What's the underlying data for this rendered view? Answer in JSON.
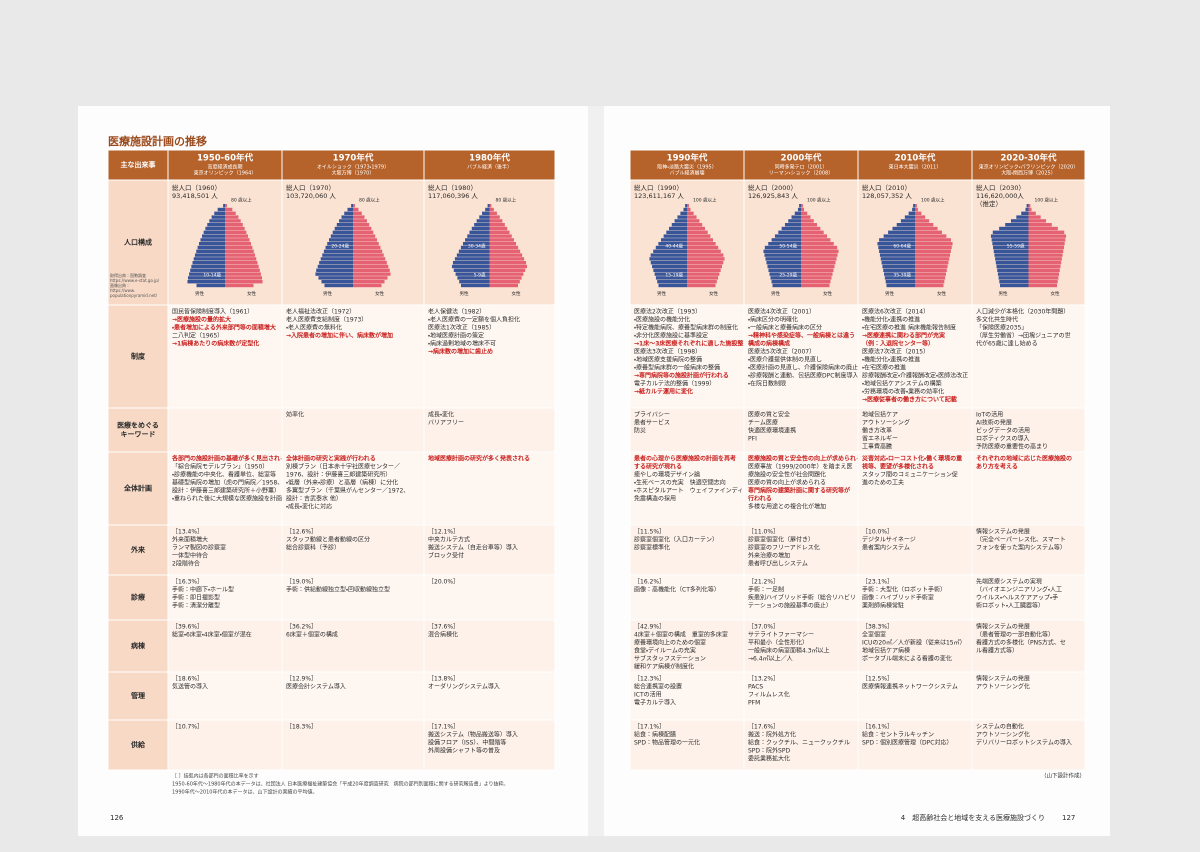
{
  "title": "医療施設計画の推移",
  "row_labels": [
    [
      "主な出来事"
    ],
    [
      "人口構成"
    ],
    [
      "制度"
    ],
    [
      "医療をめぐる",
      "キーワード"
    ],
    [
      "全体計画"
    ],
    [
      "外来"
    ],
    [
      "診療"
    ],
    [
      "病棟"
    ],
    [
      "管理"
    ],
    [
      "供給"
    ]
  ],
  "sources": [
    "取得出典：国勢調査",
    "https://www.e-stat.go.jp/",
    "画像出典：",
    "https://www.",
    "populationpyramid.net/"
  ],
  "male": "男性",
  "female": "女性",
  "eras": [
    {
      "name": "1950-60年代",
      "sub": [
        "高度経済成長期",
        "東京オリンピック（1964）"
      ],
      "pop": [
        "総人口（1960）",
        "93,418,501 人"
      ],
      "top": "80 歳以上",
      "ages": [
        "10-14歳"
      ],
      "cells": [
        [
          "国民皆保険制度導入（1961）",
          {
            "text": "→医療施設の量的拡大",
            "color": "#c8201e"
          },
          {
            "text": "・患者増加による外来部門等の面積増大",
            "color": "#c8201e"
          },
          "二八判定（1965）",
          {
            "text": "→1病棟あたりの病床数が定型化",
            "color": "#c8201e"
          }
        ],
        [],
        [
          {
            "text": "各部門の施設計画の基礎が多く見出される",
            "color": "#c8201e"
          },
          "「綜合病院モデルプラン」（1950）",
          "・診療機能の中央化、看護単位、総室等",
          "基礎型病院の増加（虎の門病院／1958、",
          "設計：伊藤喜三郎建築研究所＋小野薫）",
          "・重ねられた後に大規模な医療施設を計画"
        ],
        [
          "［13.4%］",
          "外来面積増大",
          "ランマ製図の診察室",
          "一体型中待合",
          "2段階待合"
        ],
        [
          "［16.3%］",
          "手術：中廊下・ホール型",
          "手術：即日撮影型",
          "手術：清潔分離型"
        ],
        [
          "［39.6%］",
          "総室・6床室・4床室・個室が混在"
        ],
        [
          "［18.6%］",
          "気送管の導入"
        ],
        [
          "［10.7%］"
        ]
      ]
    },
    {
      "name": "1970年代",
      "sub": [
        "オイルショック（1973・1979）",
        "大阪万博（1970）"
      ],
      "pop": [
        "総人口（1970）",
        "103,720,060 人"
      ],
      "top": "80 歳以上",
      "ages": [
        "20-24歳"
      ],
      "cells": [
        [
          "老人福祉法改正（1972）",
          "老人医療費支給制度（1973）",
          "・老人医療費の無料化",
          {
            "text": "→入院患者の増加に伴い、病床数が増加",
            "color": "#c8201e"
          }
        ],
        [
          "効率化"
        ],
        [
          {
            "text": "全体計画の研究と実践が行われる",
            "color": "#c8201e"
          },
          "別棟プラン（日本赤十字社医療センター／",
          "1976、設計：伊藤喜三郎建築研究所）",
          "・低層（外来・診療）と高層（病棟）に分化",
          "多翼型プラン（千葉県がんセンター／1972、",
          "設計：吉武泰水 他）",
          "・成長・変化に対応"
        ],
        [
          "［12.6%］",
          "スタッフ動線と患者動線の区分",
          "総合診察科（予診）"
        ],
        [
          "［19.0%］",
          "手術：供給動線独立型・回収動線独立型"
        ],
        [
          "［36.2%］",
          "6床室＋個室の構成"
        ],
        [
          "［12.9%］",
          "医療会計システム導入"
        ],
        [
          "［18.3%］"
        ]
      ]
    },
    {
      "name": "1980年代",
      "sub": [
        "バブル経済（後半）"
      ],
      "pop": [
        "総人口（1980）",
        "117,060,396 人"
      ],
      "top": "80 歳以上",
      "ages": [
        "30-34歳",
        "5-9歳"
      ],
      "cells": [
        [
          "老人保健法（1982）",
          "・老人医療費の一定額を個人負担化",
          "医療法1次改正（1985）",
          "・地域医療計画の策定",
          "・病床過剰地域の増床不可",
          {
            "text": "→病床数の増加に歯止め",
            "color": "#c8201e"
          }
        ],
        [
          "成長・変化",
          "バリアフリー"
        ],
        [
          {
            "text": "地域医療計画の研究が多く発表される",
            "color": "#c8201e"
          }
        ],
        [
          "［12.1%］",
          "中央カルテ方式",
          "搬送システム（自走台車等）導入",
          "ブロック受付"
        ],
        [
          "［20.0%］"
        ],
        [
          "［37.6%］",
          "混合病棟化"
        ],
        [
          "［13.8%］",
          "オーダリングシステム導入"
        ],
        [
          "［17.1%］",
          "搬送システム（物品搬送等）導入",
          "設備フロア（ISS）、中間階等",
          "外周設備シャフト等の普及"
        ]
      ]
    },
    {
      "name": "1990年代",
      "sub": [
        "阪神・淡路大震災（1995）",
        "バブル経済崩壊"
      ],
      "pop": [
        "総人口（1990）",
        "123,611,167 人"
      ],
      "top": "100 歳以上",
      "ages": [
        "40-44歳",
        "15-19歳"
      ],
      "cells": [
        [
          "医療法2次改正（1993）",
          "・医療施設の機能分化",
          "・特定機能病院、療養型病床群の制度化",
          "・非分化医療施設に基準設定",
          {
            "text": "→1床～3床医療それぞれに適した施設整備",
            "color": "#c8201e"
          },
          "医療法3次改正（1998）",
          "・地域医療支援病院の整備",
          "・療養型病床群の一般病床の整備",
          {
            "text": "→専門病院等の施設計画が行われる",
            "color": "#c8201e"
          },
          "電子カルテ法的整備（1999）",
          {
            "text": "→紙カルテ運用に変化",
            "color": "#c8201e"
          }
        ],
        [
          "プライバシー",
          "患者サービス",
          "防災"
        ],
        [
          {
            "text": "患者の心理から医療施設の計画を再考",
            "color": "#c8201e"
          },
          {
            "text": "する研究が現れる",
            "color": "#c8201e"
          },
          "癒やしの環境デザイン論",
          "・生死ベースの充実　快適空間志向",
          "・ホスピタルアート　ウェイファインディング",
          "免震構造の採用"
        ],
        [
          "［11.5%］",
          "診察室個室化（入口カーテン）",
          "診察室標準化"
        ],
        [
          "［16.2%］",
          "画像：高機能化（CT多列化等）"
        ],
        [
          "［42.9%］",
          "4床室＋個室の構成　重室的多床室",
          "療養環境向上のための個室",
          "食堂・デイルームの充実",
          "サブスタッフステーション",
          "緩和ケア病棟が制度化"
        ],
        [
          "［12.3%］",
          "総合連携室の設置",
          "ICTの活用",
          "電子カルテ導入"
        ],
        [
          "［17.1%］",
          "給食：病棟配膳",
          "SPD：物品管理の一元化"
        ]
      ]
    },
    {
      "name": "2000年代",
      "sub": [
        "同時多発テロ（2001）",
        "リーマン・ショック（2008）"
      ],
      "pop": [
        "総人口（2000）",
        "126,925,843 人"
      ],
      "top": "100 歳以上",
      "ages": [
        "50-54歳",
        "25-29歳"
      ],
      "cells": [
        [
          "医療法4次改正（2001）",
          "・病床区分の明確化",
          "・一般病床と療養病床の区分",
          {
            "text": "→精神科や感染症等、一般病棟とは違う",
            "color": "#c8201e"
          },
          {
            "text": "構成の病棟構成",
            "color": "#c8201e"
          },
          "医療法5次改正（2007）",
          "・医療介護提供体制の見直し",
          "・医療計画の見直し、介護保険病床の廃止",
          "・診療報酬と連動、包括医療DPC制度導入",
          "・在院日数制限"
        ],
        [
          "医療の質と安全",
          "チーム医療",
          "快適医療環境連携",
          "PFI"
        ],
        [
          {
            "text": "医療施設の質と安全性の向上が求められる",
            "color": "#c8201e"
          },
          "医療事故（1999/2000年）を踏まえ医",
          "療施設の安全性が社会問題化",
          "医療の質の向上が求められる",
          {
            "text": "専門病院の建築計画に関する研究等が",
            "color": "#c8201e"
          },
          {
            "text": "行われる",
            "color": "#c8201e"
          },
          "多様な用途との複合化が増加"
        ],
        [
          "［11.0%］",
          "診察室個室化（扉付き）",
          "診察室のフリーアドレス化",
          "外来治療の増加",
          "患者呼び出しシステム"
        ],
        [
          "［21.2%］",
          "手術：一足制",
          "疾患別ハイブリッド手術（総合リハビリ",
          "テーションの施設基準の廃止）"
        ],
        [
          "［37.0%］",
          "サテライトファーマシー",
          "平和最小（全性形化）",
          "一般病床の病室面積4.3㎡以上",
          "→6.4㎡以上／人"
        ],
        [
          "［13.2%］",
          "PACS",
          "フィルムレス化",
          "PFM"
        ],
        [
          "［17.6%］",
          "搬送：院外処方化",
          "給食：クックチル、ニュークックチル",
          "SPD：院外SPD",
          "委託業務拡大化"
        ]
      ]
    },
    {
      "name": "2010年代",
      "sub": [
        "東日本大震災（2011）"
      ],
      "pop": [
        "総人口（2010）",
        "128,057,352 人"
      ],
      "top": "100 歳以上",
      "ages": [
        "60-64歳",
        "35-39歳"
      ],
      "cells": [
        [
          "医療法6次改正（2014）",
          "・機能分化・連携の推進",
          "・在宅医療の推進 病床機能報告制度",
          {
            "text": "→医療連携に関わる部門が充実",
            "color": "#c8201e"
          },
          {
            "text": "（例：入退院センター等）",
            "color": "#c8201e"
          },
          "医療法7次改正（2015）",
          "・機能分化・連携の推進",
          "・在宅医療の推進",
          "診療報酬改定・介護報酬改定・医師法改正（2018）",
          "・地域包括ケアシステムの構築",
          "・労務環境の改善・業務の効率化",
          {
            "text": "→医療従事者の働き方について記載",
            "color": "#c8201e"
          }
        ],
        [
          "地域包括ケア",
          "アウトソーシング",
          "働き方改革",
          "省エネルギー",
          "工事費高騰"
        ],
        [
          {
            "text": "災害対応・ローコスト化・働く環境の重",
            "color": "#c8201e"
          },
          {
            "text": "視等、要望が多様化される",
            "color": "#c8201e"
          },
          "スタッフ間のコミュニケーション促",
          "進のための工夫"
        ],
        [
          "［10.0%］",
          "デジタルサイネージ",
          "患者案内システム"
        ],
        [
          "［23.1%］",
          "手術：大型化（ロボット手術）",
          "画像：ハイブリッド手術室",
          "薬剤師病棟常駐"
        ],
        [
          "［38.3%］",
          "全室個室",
          "ICUの20㎡／人が新設（従来は15㎡）",
          "地域包括ケア病棟",
          "ポータブル端末による看護の変化"
        ],
        [
          "［12.5%］",
          "医療情報連携ネットワークシステム"
        ],
        [
          "［16.1%］",
          "給食：セントラルキッチン",
          "SPD：個別医療管理（DPC対応）"
        ]
      ]
    },
    {
      "name": "2020-30年代",
      "sub": [
        "東京オリンピック・パラリンピック（2020）",
        "大阪・関西万博（2025）"
      ],
      "pop": [
        "総人口（2030）",
        "116,620,000人",
        "（推定）"
      ],
      "top": "100 歳以上",
      "ages": [
        "55-59歳"
      ],
      "cells": [
        [
          "人口減少が本格化（2030年問題）",
          "多文化共生時代",
          "「保険医療2035」",
          "（厚生労働省）→団塊ジュニアの世",
          "代が65歳に達し始める"
        ],
        [
          "IoTの活用",
          "AI技術の発展",
          "ビッグデータの活用",
          "ロボティクスの導入",
          "予防医療の重要性の高まり"
        ],
        [
          {
            "text": "それぞれの地域に応じた医療施設の",
            "color": "#c8201e"
          },
          {
            "text": "あり方を考える",
            "color": "#c8201e"
          }
        ],
        [
          "情報システムの発展",
          "（完全ペーパーレス化、スマート",
          "フォンを使った案内システム等）"
        ],
        [
          "先端医療システムの実現",
          "（バイオエンジニアリング・人工",
          "ウイルス・ヘルスケアアップ・手",
          "術ロボット・人工臓器等）"
        ],
        [
          "情報システムの発展",
          "（患者管理の一部自動化等）",
          "看護方式の多様化（PNS方式、セ",
          "ル看護方式等）"
        ],
        [
          "情報システムの発展",
          "アウトソーシング化"
        ],
        [
          "システムの自動化",
          "アウトソーシング化",
          "デリバリーロボットシステムの導入"
        ]
      ]
    }
  ],
  "footnote": [
    "［ ］括弧内は各部門の面積比率を示す",
    "1950-60年代～1980年代の本データは、社団法人 日本医療福祉建築協会「平成20年度調査研究　病院の部門別面積に関する研究報告書」より抜粋。",
    "1990年代～2010年代の本データは、山下設計の実績の平均値。"
  ],
  "credit": "（山下設計作成）",
  "page_left": "126",
  "chapter": "4　超高齢社会と地域を支える医療施設づくり",
  "page_right": "127"
}
